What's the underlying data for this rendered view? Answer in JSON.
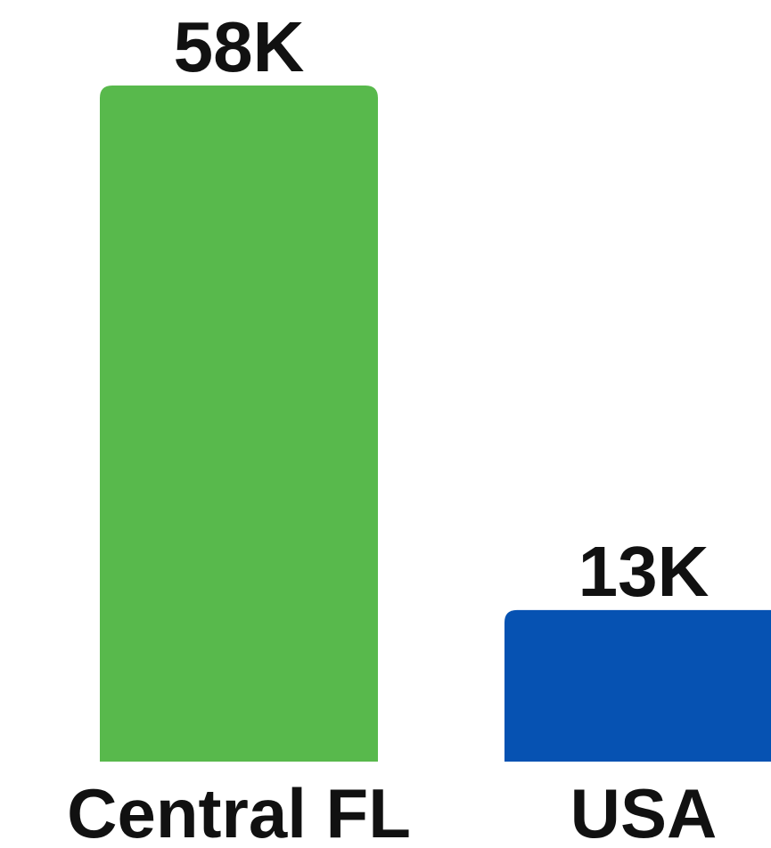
{
  "chart_data": {
    "type": "bar",
    "categories": [
      "Central FL",
      "USA"
    ],
    "values": [
      58,
      13
    ],
    "value_labels": [
      "58K",
      "13K"
    ],
    "colors": [
      "#58b94c",
      "#0652b2"
    ],
    "title": "",
    "xlabel": "",
    "ylabel": "",
    "ylim": [
      0,
      58
    ],
    "grid": false
  }
}
